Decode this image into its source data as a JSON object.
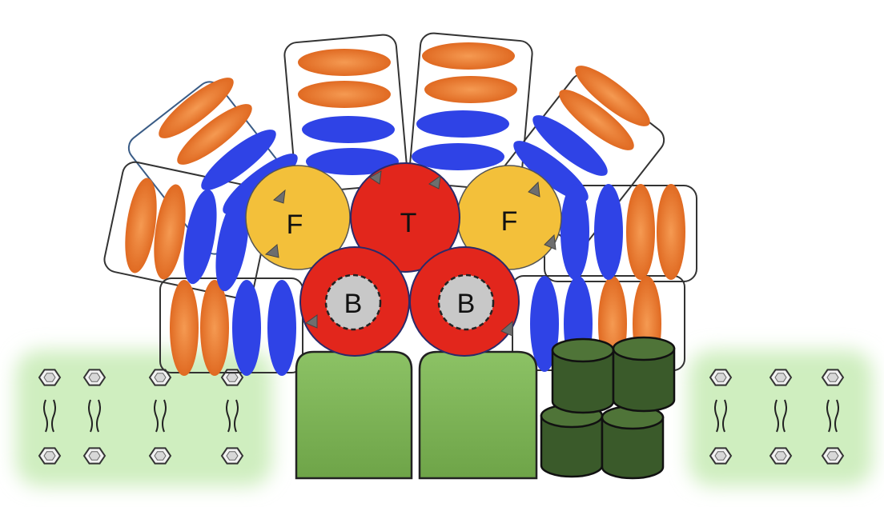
{
  "labels": {
    "tryptophan": "T",
    "phenylalanine": "F",
    "b_left": "B",
    "b_right": "B"
  },
  "colors": {
    "orange_ellipse": "#e87a35",
    "blue_ellipse": "#2f43e6",
    "yellow_circle": "#f3c03a",
    "red_circle": "#e2261c",
    "gray_core": "#c8c8c8",
    "light_green_block": "#7fb457",
    "dark_green_cylinder": "#3a5a2a",
    "membrane_glow": "#cfeebf"
  },
  "legend_icons": [
    "hexagon-lipid-head-icon",
    "wavy-lipid-tail-icon"
  ]
}
